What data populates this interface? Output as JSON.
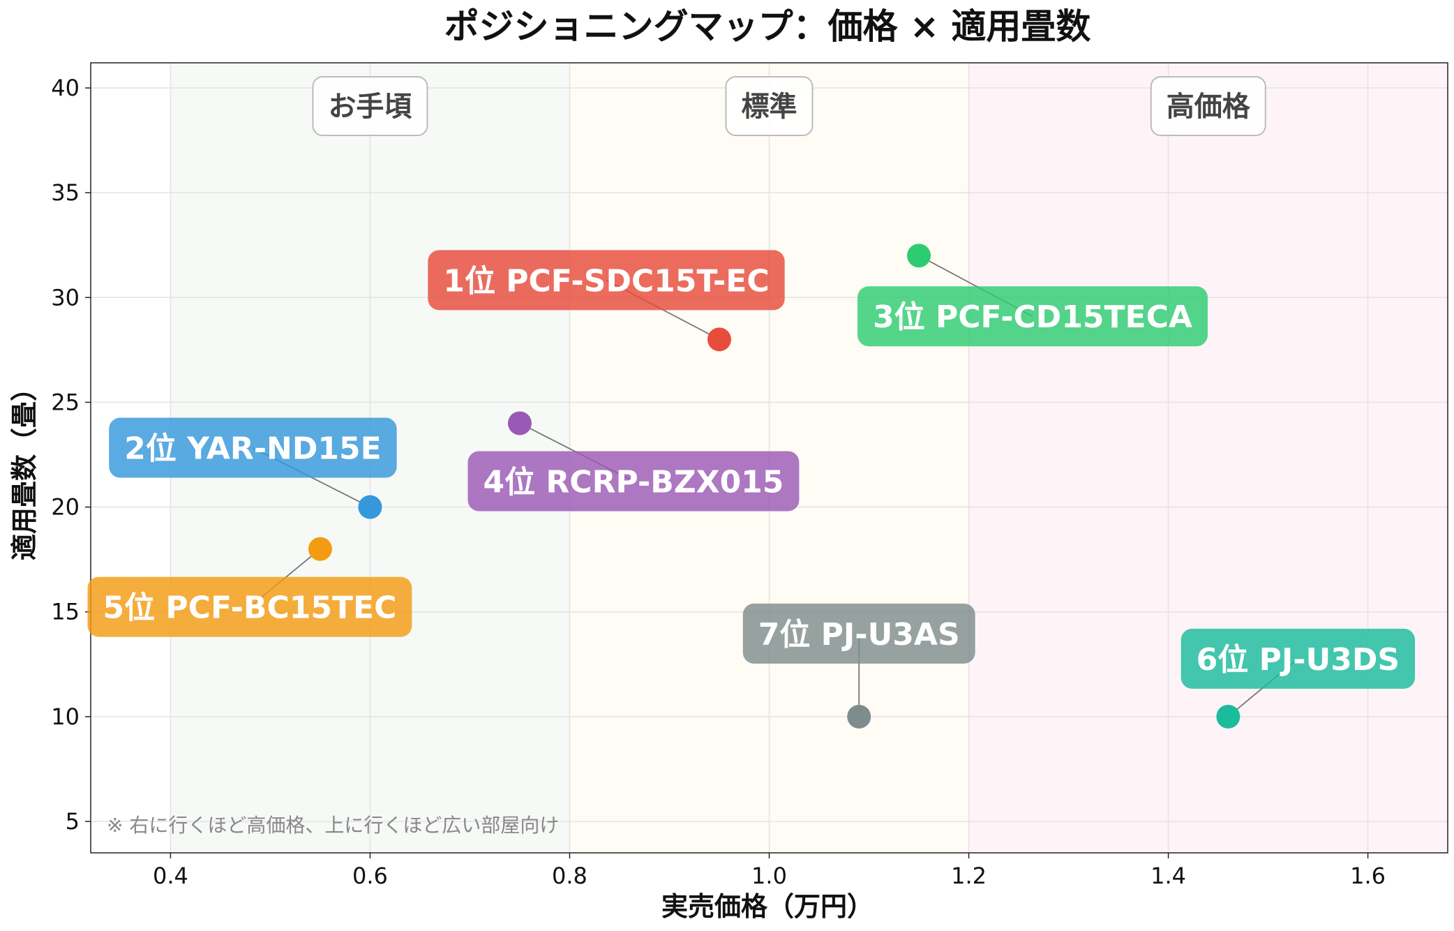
{
  "chart_data": {
    "type": "scatter",
    "title": "ポジショニングマップ：価格 × 適用畳数",
    "xlabel": "実売価格（万円）",
    "ylabel": "適用畳数（畳）",
    "xlim": [
      0.32,
      1.68
    ],
    "ylim": [
      3.5,
      41.2
    ],
    "xticks": [
      0.4,
      0.6,
      0.8,
      1.0,
      1.2,
      1.4,
      1.6
    ],
    "xtick_labels": [
      "0.4",
      "0.6",
      "0.8",
      "1.0",
      "1.2",
      "1.4",
      "1.6"
    ],
    "yticks": [
      5,
      10,
      15,
      20,
      25,
      30,
      35,
      40
    ],
    "ytick_labels": [
      "5",
      "10",
      "15",
      "20",
      "25",
      "30",
      "35",
      "40"
    ],
    "grid": true,
    "zones": [
      {
        "label": "お手頃",
        "x_range": [
          0.4,
          0.8
        ],
        "color": "#f6f9f6"
      },
      {
        "label": "標準",
        "x_range": [
          0.8,
          1.2
        ],
        "color": "#fefcf4"
      },
      {
        "label": "高価格",
        "x_range": [
          1.2,
          1.68
        ],
        "color": "#fef4f7"
      }
    ],
    "points": [
      {
        "label": "1位 PCF-SDC15T-EC",
        "x": 0.95,
        "y": 28,
        "color": "#e74c3c"
      },
      {
        "label": "2位 YAR-ND15E",
        "x": 0.6,
        "y": 20,
        "color": "#3498db"
      },
      {
        "label": "3位 PCF-CD15TECA",
        "x": 1.15,
        "y": 32,
        "color": "#2ecc71"
      },
      {
        "label": "4位 RCRP-BZX015",
        "x": 0.75,
        "y": 24,
        "color": "#9b59b6"
      },
      {
        "label": "5位 PCF-BC15TEC",
        "x": 0.55,
        "y": 18,
        "color": "#f39c12"
      },
      {
        "label": "6位 PJ-U3DS",
        "x": 1.46,
        "y": 10,
        "color": "#1abc9c"
      },
      {
        "label": "7位 PJ-U3AS",
        "x": 1.09,
        "y": 10,
        "color": "#7f8c8d"
      }
    ],
    "note": "※ 右に行くほど高価格、上に行くほど広い部屋向け"
  }
}
